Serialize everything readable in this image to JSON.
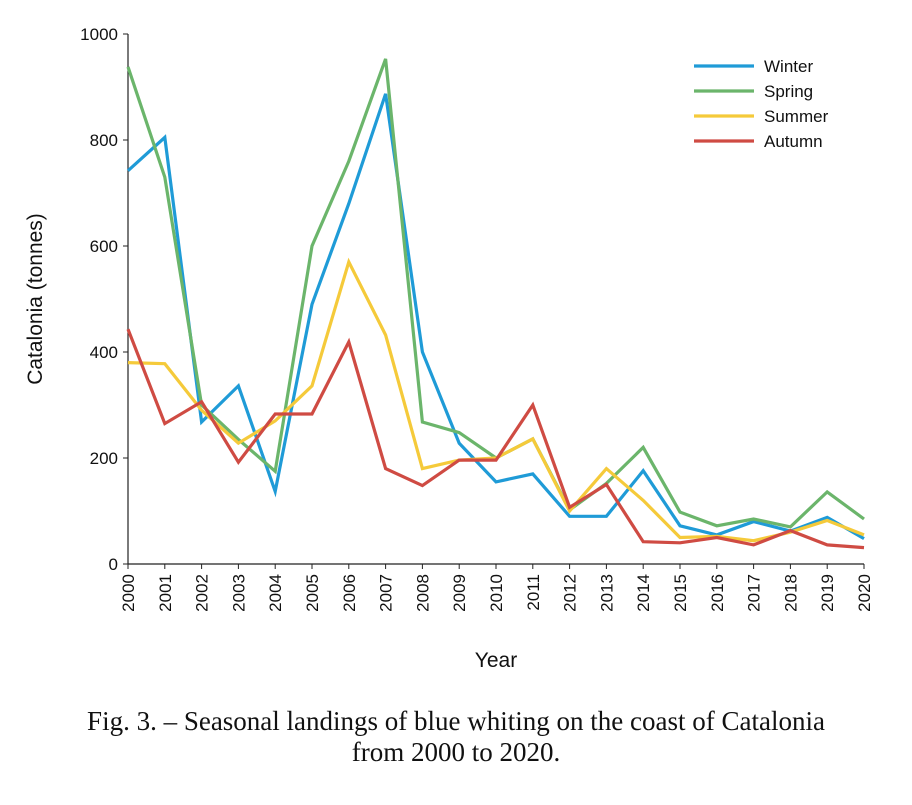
{
  "chart_data": {
    "type": "line",
    "title": "",
    "xlabel": "Year",
    "ylabel": "Catalonia (tonnes)",
    "ylim": [
      0,
      1000
    ],
    "yticks": [
      0,
      200,
      400,
      600,
      800,
      1000
    ],
    "x": [
      "2000",
      "2001",
      "2002",
      "2003",
      "2004",
      "2005",
      "2006",
      "2007",
      "2008",
      "2009",
      "2010",
      "2011",
      "2012",
      "2013",
      "2014",
      "2015",
      "2016",
      "2017",
      "2018",
      "2019",
      "2020"
    ],
    "grid": false,
    "legend_position": "top-right",
    "series": [
      {
        "name": "Winter",
        "color": "#1f9bd7",
        "values": [
          742,
          805,
          268,
          336,
          137,
          490,
          680,
          887,
          400,
          228,
          155,
          170,
          90,
          90,
          176,
          72,
          55,
          80,
          62,
          88,
          48
        ]
      },
      {
        "name": "Spring",
        "color": "#6bb56b",
        "values": [
          938,
          730,
          300,
          235,
          175,
          600,
          760,
          953,
          268,
          248,
          200,
          236,
          102,
          152,
          220,
          98,
          72,
          85,
          70,
          136,
          85
        ]
      },
      {
        "name": "Summer",
        "color": "#f5ca3a",
        "values": [
          380,
          378,
          290,
          228,
          270,
          336,
          570,
          432,
          180,
          196,
          200,
          236,
          100,
          180,
          120,
          50,
          52,
          44,
          60,
          82,
          55
        ]
      },
      {
        "name": "Autumn",
        "color": "#cf4b43",
        "values": [
          443,
          265,
          306,
          192,
          283,
          283,
          419,
          180,
          148,
          196,
          196,
          300,
          107,
          150,
          42,
          40,
          50,
          36,
          63,
          36,
          31
        ]
      }
    ]
  },
  "caption": {
    "line1": "Fig. 3. – Seasonal landings of blue whiting on the coast of Catalonia",
    "line2": "from 2000 to 2020."
  }
}
